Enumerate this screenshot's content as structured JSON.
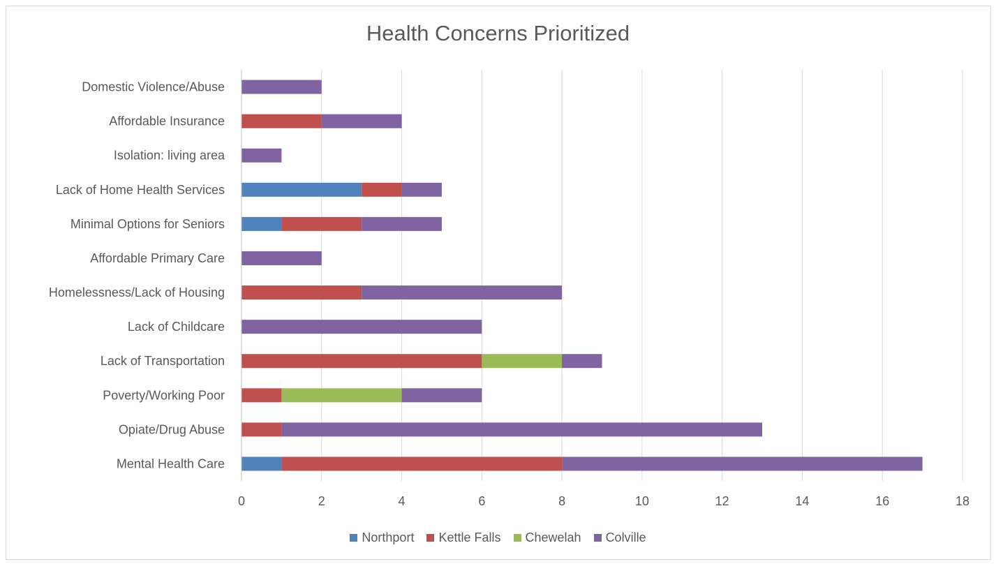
{
  "chart_data": {
    "type": "bar",
    "orientation": "horizontal",
    "stacked": true,
    "title": "Health Concerns Prioritized",
    "xlabel": "",
    "ylabel": "",
    "categories": [
      "Mental Health Care",
      "Opiate/Drug Abuse",
      "Poverty/Working Poor",
      "Lack of Transportation",
      "Lack of Childcare",
      "Homelessness/Lack of Housing",
      "Affordable Primary Care",
      "Minimal Options for Seniors",
      "Lack of Home Health Services",
      "Isolation: living area",
      "Affordable Insurance",
      "Domestic Violence/Abuse"
    ],
    "series": [
      {
        "name": "Northport",
        "color": "#4f81bd",
        "values": [
          1,
          0,
          0,
          0,
          0,
          0,
          0,
          1,
          3,
          0,
          0,
          0
        ]
      },
      {
        "name": "Kettle Falls",
        "color": "#c0504d",
        "values": [
          7,
          1,
          1,
          6,
          0,
          3,
          0,
          2,
          1,
          0,
          2,
          0
        ]
      },
      {
        "name": "Chewelah",
        "color": "#9bbb59",
        "values": [
          0,
          0,
          3,
          2,
          0,
          0,
          0,
          0,
          0,
          0,
          0,
          0
        ]
      },
      {
        "name": "Colville",
        "color": "#8064a2",
        "values": [
          9,
          12,
          2,
          1,
          6,
          5,
          2,
          2,
          1,
          1,
          2,
          2
        ]
      }
    ],
    "xlim": [
      0,
      18
    ],
    "xticks": [
      "0",
      "2",
      "4",
      "6",
      "8",
      "10",
      "12",
      "14",
      "16",
      "18"
    ],
    "grid": "vertical",
    "legend_position": "bottom",
    "gridline_color": "#d9d9d9",
    "text_color": "#595959"
  }
}
